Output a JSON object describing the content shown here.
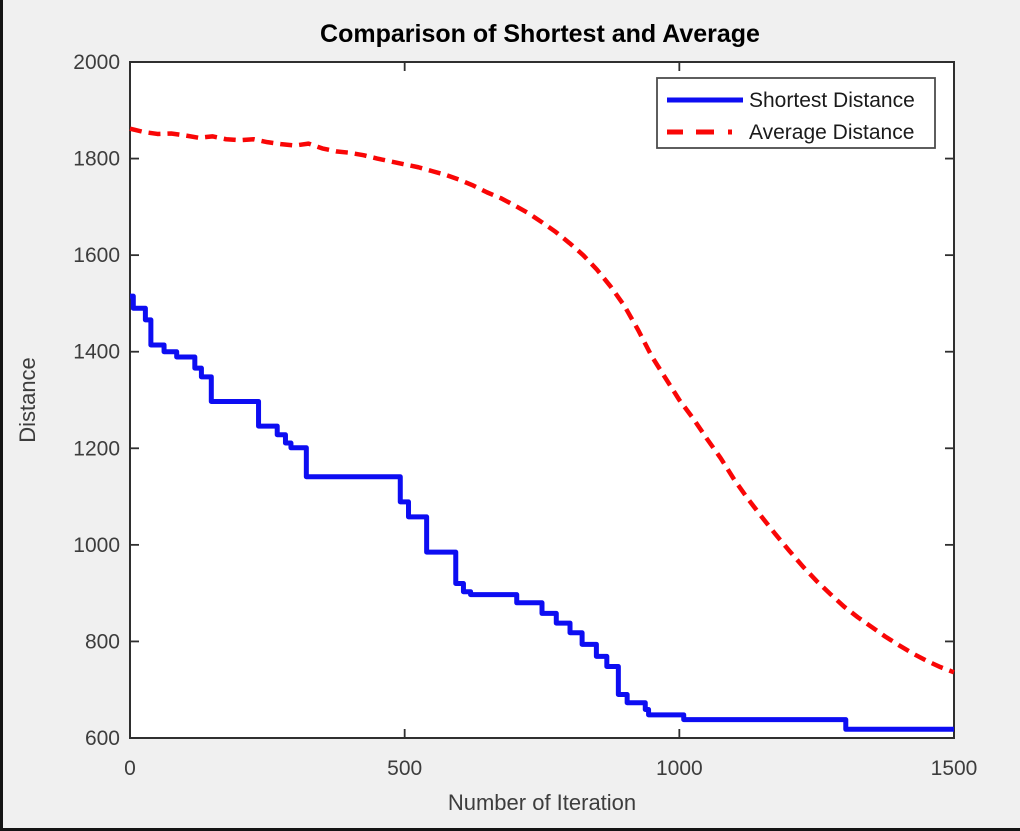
{
  "chart_data": {
    "type": "line",
    "title": "Comparison of Shortest and Average",
    "xlabel": "Number of Iteration",
    "ylabel": "Distance",
    "xlim": [
      0,
      1500
    ],
    "ylim": [
      600,
      2000
    ],
    "xticks": [
      0,
      500,
      1000,
      1500
    ],
    "yticks": [
      600,
      800,
      1000,
      1200,
      1400,
      1600,
      1800,
      2000
    ],
    "grid": false,
    "legend_position": "top-right",
    "plot_background": "#ffffff",
    "figure_background": "#f0f0f0",
    "axis_color": "#2f2f2f",
    "series": [
      {
        "name": "Shortest Distance",
        "color": "#0d0df2",
        "style": "solid",
        "step": true,
        "line_width": 5,
        "points": [
          [
            0,
            1515
          ],
          [
            6,
            1490
          ],
          [
            28,
            1466
          ],
          [
            38,
            1414
          ],
          [
            62,
            1400
          ],
          [
            85,
            1389
          ],
          [
            118,
            1366
          ],
          [
            130,
            1348
          ],
          [
            148,
            1297
          ],
          [
            234,
            1246
          ],
          [
            268,
            1228
          ],
          [
            283,
            1211
          ],
          [
            293,
            1201
          ],
          [
            321,
            1141
          ],
          [
            492,
            1089
          ],
          [
            507,
            1058
          ],
          [
            540,
            985
          ],
          [
            593,
            920
          ],
          [
            607,
            903
          ],
          [
            620,
            897
          ],
          [
            704,
            880
          ],
          [
            750,
            858
          ],
          [
            776,
            838
          ],
          [
            801,
            818
          ],
          [
            823,
            794
          ],
          [
            849,
            769
          ],
          [
            868,
            748
          ],
          [
            889,
            690
          ],
          [
            905,
            673
          ],
          [
            938,
            659
          ],
          [
            944,
            648
          ],
          [
            1008,
            638
          ],
          [
            1303,
            618
          ],
          [
            1500,
            618
          ]
        ]
      },
      {
        "name": "Average Distance",
        "color": "#f90606",
        "style": "dashed",
        "step": false,
        "line_width": 4.5,
        "points": [
          [
            0,
            1862
          ],
          [
            25,
            1855
          ],
          [
            50,
            1851
          ],
          [
            75,
            1852
          ],
          [
            100,
            1848
          ],
          [
            125,
            1843
          ],
          [
            150,
            1846
          ],
          [
            175,
            1840
          ],
          [
            200,
            1838
          ],
          [
            225,
            1840
          ],
          [
            250,
            1834
          ],
          [
            275,
            1830
          ],
          [
            300,
            1827
          ],
          [
            325,
            1831
          ],
          [
            350,
            1821
          ],
          [
            375,
            1815
          ],
          [
            400,
            1812
          ],
          [
            425,
            1807
          ],
          [
            450,
            1800
          ],
          [
            475,
            1794
          ],
          [
            500,
            1788
          ],
          [
            525,
            1782
          ],
          [
            550,
            1774
          ],
          [
            575,
            1766
          ],
          [
            600,
            1756
          ],
          [
            625,
            1744
          ],
          [
            650,
            1730
          ],
          [
            675,
            1718
          ],
          [
            700,
            1703
          ],
          [
            725,
            1687
          ],
          [
            750,
            1668
          ],
          [
            775,
            1648
          ],
          [
            800,
            1625
          ],
          [
            825,
            1600
          ],
          [
            850,
            1570
          ],
          [
            875,
            1535
          ],
          [
            900,
            1495
          ],
          [
            925,
            1445
          ],
          [
            950,
            1390
          ],
          [
            975,
            1345
          ],
          [
            1000,
            1300
          ],
          [
            1025,
            1262
          ],
          [
            1050,
            1220
          ],
          [
            1075,
            1180
          ],
          [
            1100,
            1135
          ],
          [
            1125,
            1095
          ],
          [
            1150,
            1058
          ],
          [
            1175,
            1022
          ],
          [
            1200,
            988
          ],
          [
            1225,
            955
          ],
          [
            1250,
            925
          ],
          [
            1275,
            898
          ],
          [
            1300,
            872
          ],
          [
            1325,
            850
          ],
          [
            1350,
            830
          ],
          [
            1375,
            810
          ],
          [
            1400,
            792
          ],
          [
            1425,
            775
          ],
          [
            1450,
            760
          ],
          [
            1475,
            747
          ],
          [
            1500,
            736
          ]
        ]
      }
    ]
  }
}
